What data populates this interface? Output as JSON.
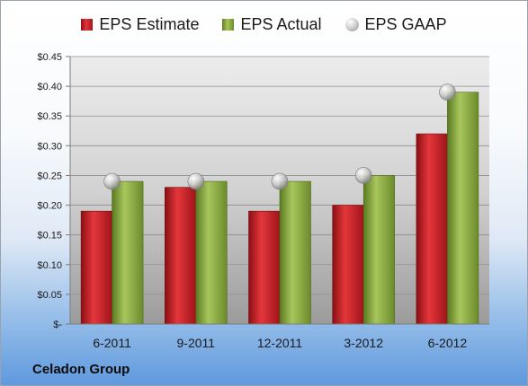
{
  "chart_data": {
    "type": "bar",
    "categories": [
      "6-2011",
      "9-2011",
      "12-2011",
      "3-2012",
      "6-2012"
    ],
    "series": [
      {
        "name": "EPS Estimate",
        "kind": "bar",
        "color": "#c0282d",
        "values": [
          0.19,
          0.23,
          0.19,
          0.2,
          0.32
        ]
      },
      {
        "name": "EPS Actual",
        "kind": "bar",
        "color": "#8cab45",
        "values": [
          0.24,
          0.24,
          0.24,
          0.25,
          0.39
        ]
      },
      {
        "name": "EPS GAAP",
        "kind": "marker",
        "color": "#b5b5b5",
        "values": [
          0.24,
          0.24,
          0.24,
          0.25,
          0.39
        ]
      }
    ],
    "ylim": [
      0,
      0.45
    ],
    "yticks": [
      0,
      0.05,
      0.1,
      0.15,
      0.2,
      0.25,
      0.3,
      0.35,
      0.4,
      0.45
    ],
    "ytick_labels": [
      "$-",
      "$0.05",
      "$0.10",
      "$0.15",
      "$0.20",
      "$0.25",
      "$0.30",
      "$0.35",
      "$0.40",
      "$0.45"
    ],
    "grid": true,
    "legend_position": "top"
  },
  "footer": {
    "company": "Celadon Group"
  }
}
